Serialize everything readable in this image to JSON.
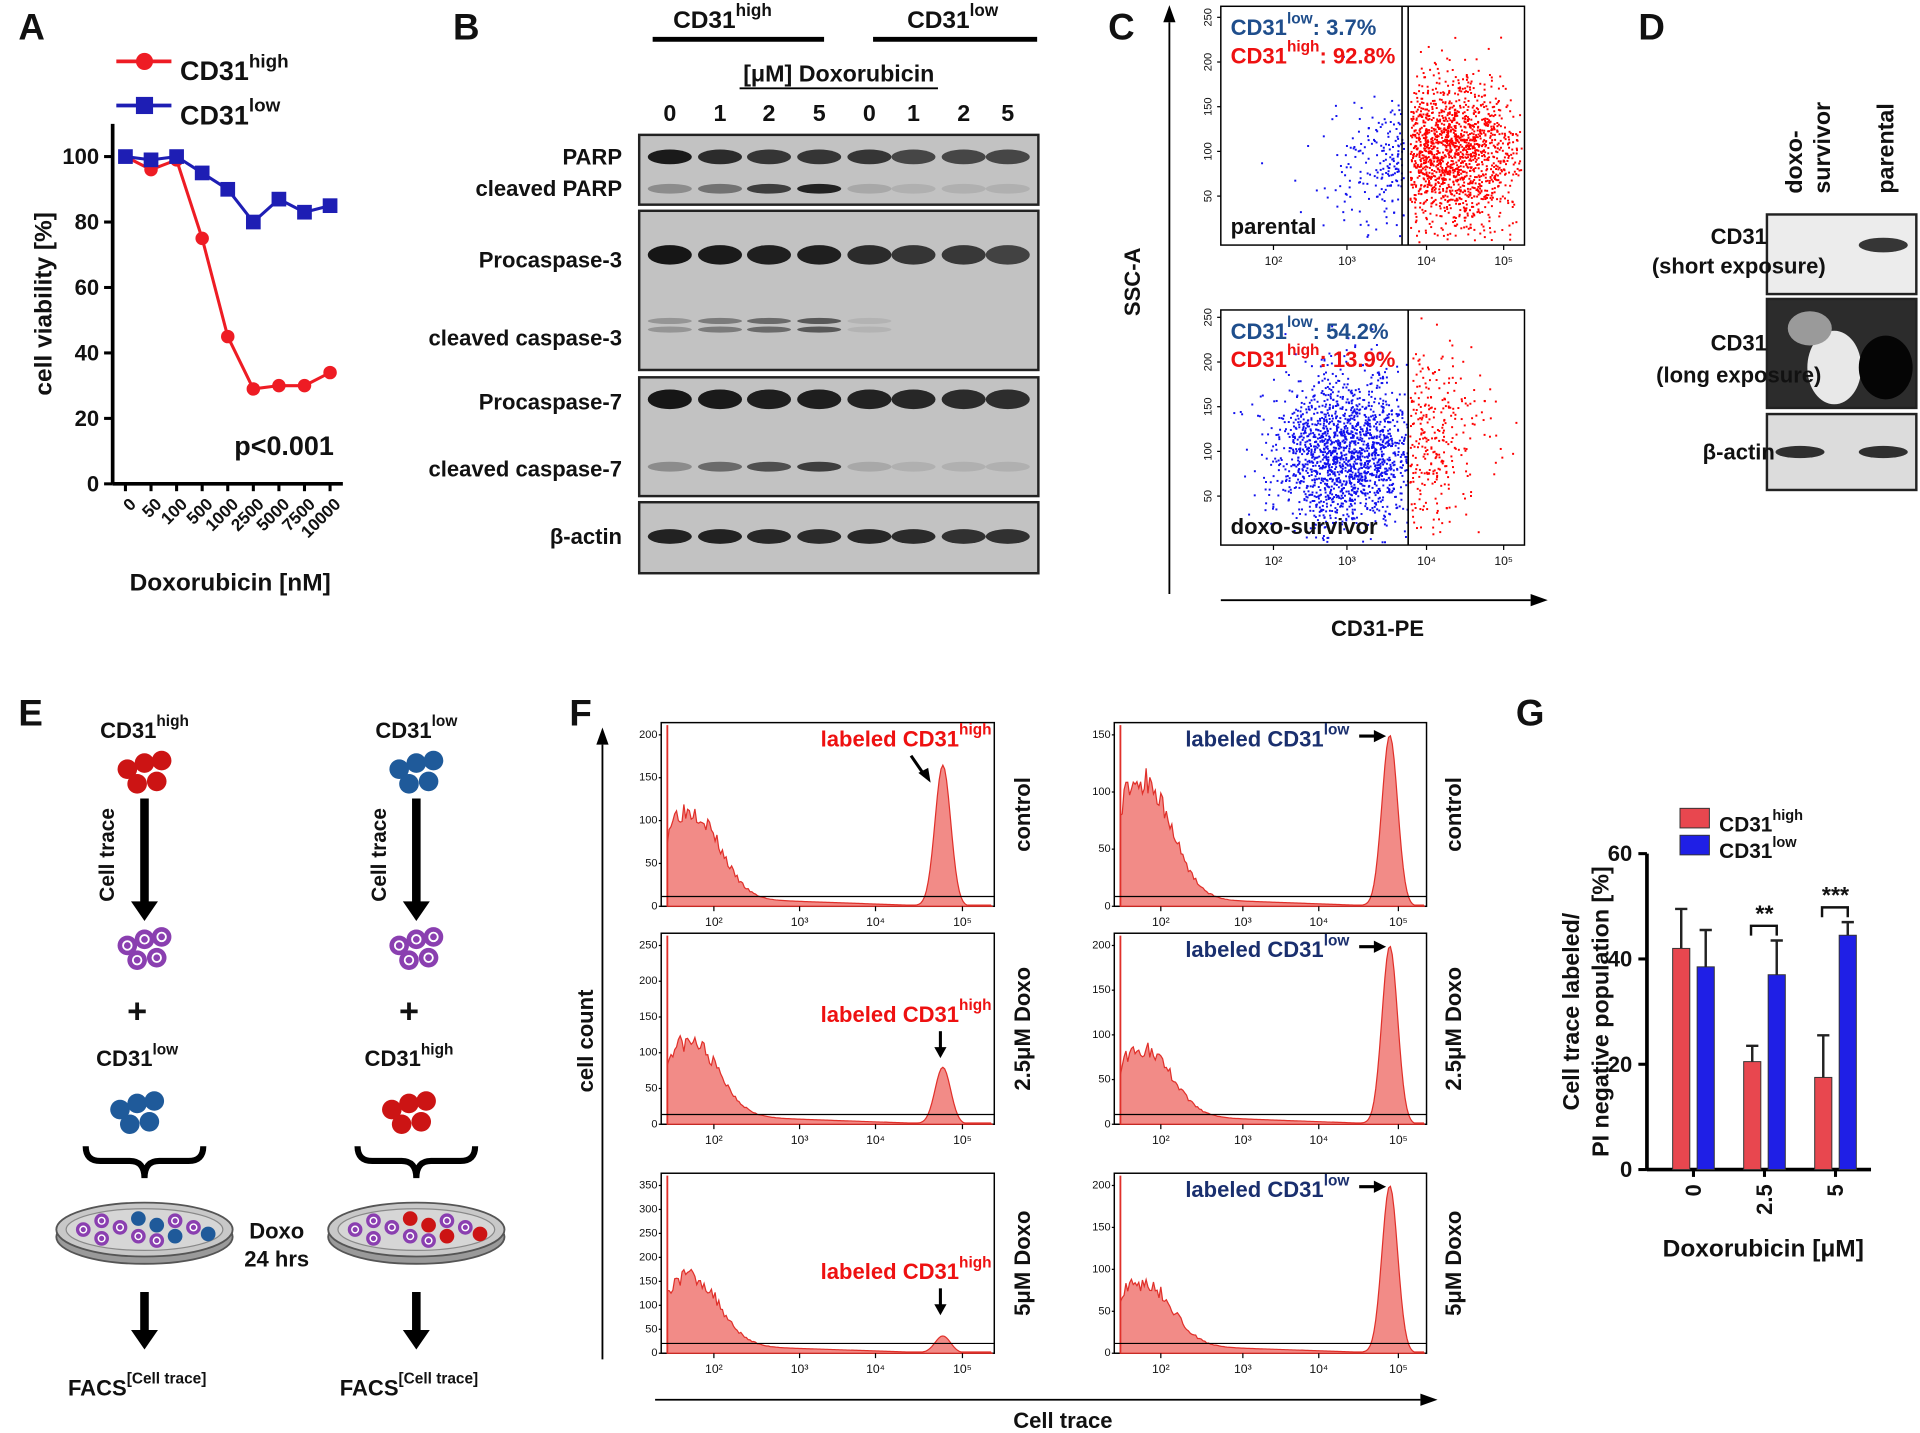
{
  "panel_labels": [
    "A",
    "B",
    "C",
    "D",
    "E",
    "F",
    "G"
  ],
  "chart_data": [
    {
      "type": "line",
      "categories": [
        "0",
        "50",
        "100",
        "500",
        "1000",
        "2500",
        "5000",
        "7500",
        "10000"
      ],
      "series": [
        {
          "name": "CD31",
          "name_sup": "high",
          "color": "#ee1c24",
          "marker": "circle",
          "values": [
            100,
            96,
            99,
            75,
            45,
            29,
            30,
            30,
            34
          ]
        },
        {
          "name": "CD31",
          "name_sup": "low",
          "color": "#1e1eb4",
          "marker": "square",
          "values": [
            100,
            99,
            100,
            95,
            90,
            80,
            87,
            83,
            85
          ]
        }
      ],
      "ylim": [
        0,
        110
      ],
      "yticks": [
        0,
        20,
        40,
        60,
        80,
        100
      ],
      "y_label": "cell viability [%]",
      "x_label": "Doxorubicin [nM]",
      "annotation": "p<0.001"
    },
    {
      "type": "bar",
      "categories": [
        "0",
        "2.5",
        "5"
      ],
      "series": [
        {
          "name": "CD31",
          "name_sup": "high",
          "color": "#e8474f",
          "values": [
            42,
            20.5,
            17.5
          ],
          "errors": [
            7.5,
            3,
            8
          ]
        },
        {
          "name": "CD31",
          "name_sup": "low",
          "color": "#1f1fe6",
          "values": [
            38.5,
            37,
            44.5
          ],
          "errors": [
            7,
            6.5,
            2.5
          ]
        }
      ],
      "ylim": [
        0,
        60
      ],
      "yticks": [
        0,
        20,
        40,
        60
      ],
      "y_label": [
        "Cell trace labeled/",
        "PI negative population [%]"
      ],
      "x_label": "Doxorubicin [μM]",
      "significance": [
        null,
        "**",
        "***"
      ]
    }
  ],
  "blot_b": {
    "groups": [
      {
        "name": "CD31",
        "sup": "high"
      },
      {
        "name": "CD31",
        "sup": "low"
      }
    ],
    "treatment": "[μM] Doxorubicin",
    "doses": [
      "0",
      "1",
      "2",
      "5",
      "0",
      "1",
      "2",
      "5"
    ],
    "rows": [
      "PARP",
      "cleaved PARP",
      "Procaspase-3",
      "cleaved caspase-3",
      "Procaspase-7",
      "cleaved caspase-7",
      "β-actin"
    ]
  },
  "flow_c": {
    "y_label": "SSC-A",
    "x_label": "CD31-PE",
    "yticks": [
      "50",
      "100",
      "150",
      "200",
      "250"
    ],
    "xticks": [
      "10²",
      "10³",
      "10⁴",
      "10⁵"
    ],
    "plots": [
      {
        "sample": "parental",
        "gates": [
          {
            "name": "CD31",
            "sup": "low",
            "value": ": 3.7%"
          },
          {
            "name": "CD31",
            "sup": "high",
            "value": ": 92.8%"
          }
        ]
      },
      {
        "sample": "doxo-survivor",
        "gates": [
          {
            "name": "CD31",
            "sup": "low",
            "value": ": 54.2%"
          },
          {
            "name": "CD31",
            "sup": "high",
            "value": ": 13.9%"
          }
        ]
      }
    ]
  },
  "blot_d": {
    "columns": [
      [
        "doxo-",
        "survivor"
      ],
      [
        "parental"
      ]
    ],
    "rows": [
      [
        "CD31",
        "(short exposure)"
      ],
      [
        "CD31",
        "(long exposure)"
      ],
      [
        "β-actin"
      ]
    ]
  },
  "scheme_e": {
    "columns": [
      {
        "first": {
          "name": "CD31",
          "sup": "high"
        },
        "second": {
          "name": "CD31",
          "sup": "low"
        }
      },
      {
        "first": {
          "name": "CD31",
          "sup": "low"
        },
        "second": {
          "name": "CD31",
          "sup": "high"
        }
      }
    ],
    "step": "Cell trace",
    "plus": "+",
    "treatment": [
      "Doxo",
      "24 hrs"
    ],
    "readout": {
      "name": "FACS",
      "sup": "[Cell trace]"
    }
  },
  "hist_f": {
    "y_label": "cell count",
    "x_label": "Cell trace",
    "xticks": [
      "10²",
      "10³",
      "10⁴",
      "10⁵"
    ],
    "conditions": [
      "control",
      "2.5μM Doxo",
      "5μM Doxo"
    ],
    "columns": [
      {
        "label": {
          "prefix": "labeled ",
          "name": "CD31",
          "sup": "high"
        },
        "yticks": [
          [
            "0",
            "50",
            "100",
            "150",
            "200"
          ],
          [
            "0",
            "50",
            "100",
            "150",
            "200",
            "250"
          ],
          [
            "0",
            "50",
            "100",
            "150",
            "200",
            "250",
            "300",
            "350"
          ]
        ]
      },
      {
        "label": {
          "prefix": "labeled ",
          "name": "CD31",
          "sup": "low"
        },
        "yticks": [
          [
            "0",
            "50",
            "100",
            "150"
          ],
          [
            "0",
            "50",
            "100",
            "150",
            "200"
          ],
          [
            "0",
            "50",
            "100",
            "150",
            "200"
          ]
        ]
      }
    ]
  }
}
